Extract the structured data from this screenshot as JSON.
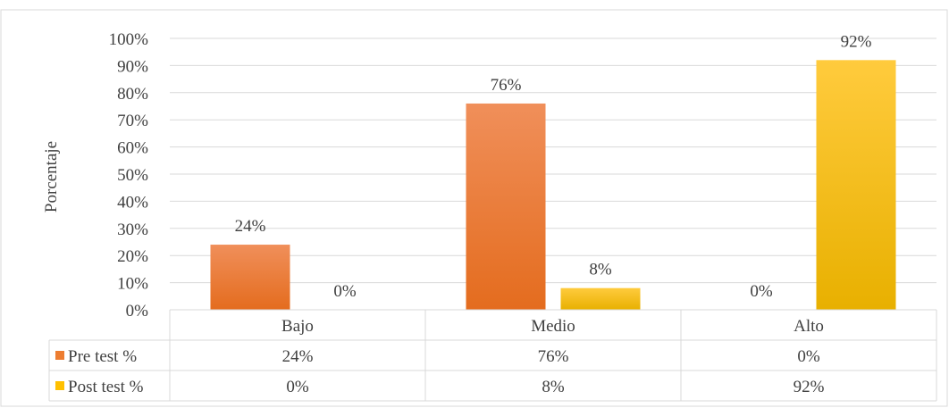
{
  "chart_data": {
    "type": "bar",
    "title": "",
    "xlabel": "",
    "ylabel": "Porcentaje",
    "ylim": [
      0,
      100
    ],
    "yticks": [
      "0%",
      "10%",
      "20%",
      "30%",
      "40%",
      "50%",
      "60%",
      "70%",
      "80%",
      "90%",
      "100%"
    ],
    "categories": [
      "Bajo",
      "Medio",
      "Alto"
    ],
    "series": [
      {
        "name": "Pre test %",
        "values": [
          24,
          76,
          0
        ],
        "labels": [
          "24%",
          "76%",
          "0%"
        ],
        "color": "#ED7D31"
      },
      {
        "name": "Post test %",
        "values": [
          0,
          8,
          92
        ],
        "labels": [
          "0%",
          "8%",
          "92%"
        ],
        "color": "#FFC000"
      }
    ],
    "grid": true,
    "legend": "data-table-below"
  }
}
